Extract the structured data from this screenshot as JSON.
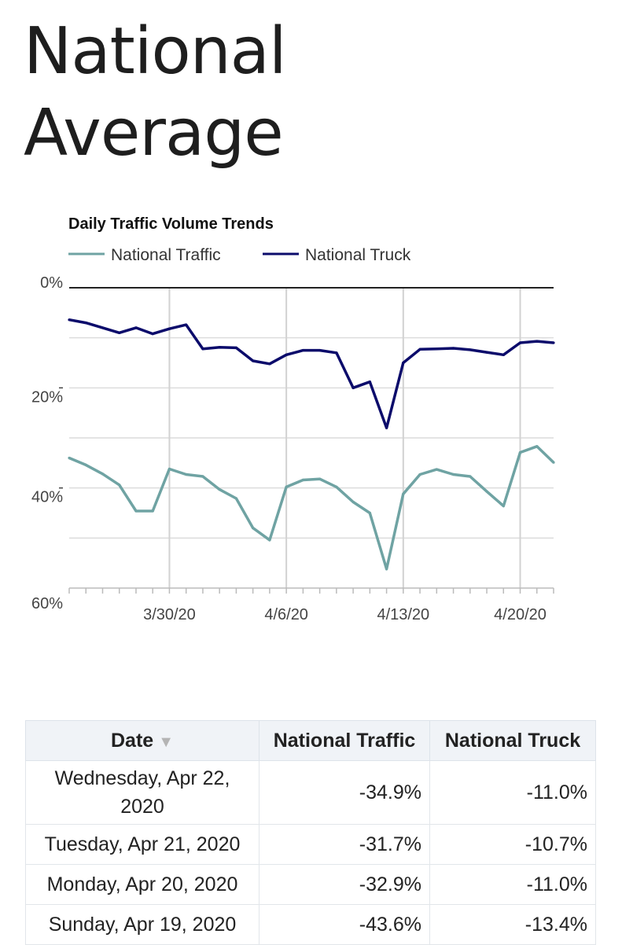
{
  "page": {
    "title_line1": "National",
    "title_line2": "Average"
  },
  "chart_data": {
    "type": "line",
    "title": "Daily Traffic Volume Trends",
    "series": [
      {
        "name": "National Traffic",
        "color": "#6fa3a3",
        "values": [
          -34,
          -35.4,
          -37.2,
          -39.4,
          -44.6,
          -44.6,
          -36.2,
          -37.3,
          -37.7,
          -40.3,
          -42.1,
          -48,
          -50.4,
          -39.8,
          -38.4,
          -38.2,
          -39.8,
          -42.8,
          -45,
          -56.2,
          -41.2,
          -37.3,
          -36.3,
          -37.3,
          -37.7,
          -40.7,
          -43.6,
          -32.9,
          -31.7,
          -34.9
        ]
      },
      {
        "name": "National Truck",
        "color": "#0b0b6b",
        "values": [
          -6.4,
          -7,
          -8,
          -9,
          -8,
          -9.2,
          -8.2,
          -7.4,
          -12.2,
          -11.9,
          -12,
          -14.6,
          -15.2,
          -13.4,
          -12.5,
          -12.5,
          -13,
          -20,
          -18.8,
          -28,
          -15,
          -12.3,
          -12.2,
          -12.1,
          -12.4,
          -12.9,
          -13.4,
          -11,
          -10.7,
          -11
        ]
      }
    ],
    "x_tick_labels": [
      "3/30/20",
      "4/6/20",
      "4/13/20",
      "4/20/20"
    ],
    "x_tick_indices": [
      6,
      13,
      20,
      27
    ],
    "y_tick_labels": [
      "0%",
      "20%",
      "40%",
      "60%"
    ],
    "ylim": [
      -60,
      0
    ],
    "grid": true,
    "legend_position": "top-left"
  },
  "table": {
    "headers": {
      "date": "Date",
      "traffic": "National Traffic",
      "truck": "National Truck"
    },
    "sort_indicator": "▼",
    "rows": [
      {
        "date": "Wednesday, Apr 22, 2020",
        "traffic": "-34.9%",
        "truck": "-11.0%"
      },
      {
        "date": "Tuesday, Apr 21, 2020",
        "traffic": "-31.7%",
        "truck": "-10.7%"
      },
      {
        "date": "Monday, Apr 20, 2020",
        "traffic": "-32.9%",
        "truck": "-11.0%"
      },
      {
        "date": "Sunday, Apr 19, 2020",
        "traffic": "-43.6%",
        "truck": "-13.4%"
      }
    ]
  }
}
